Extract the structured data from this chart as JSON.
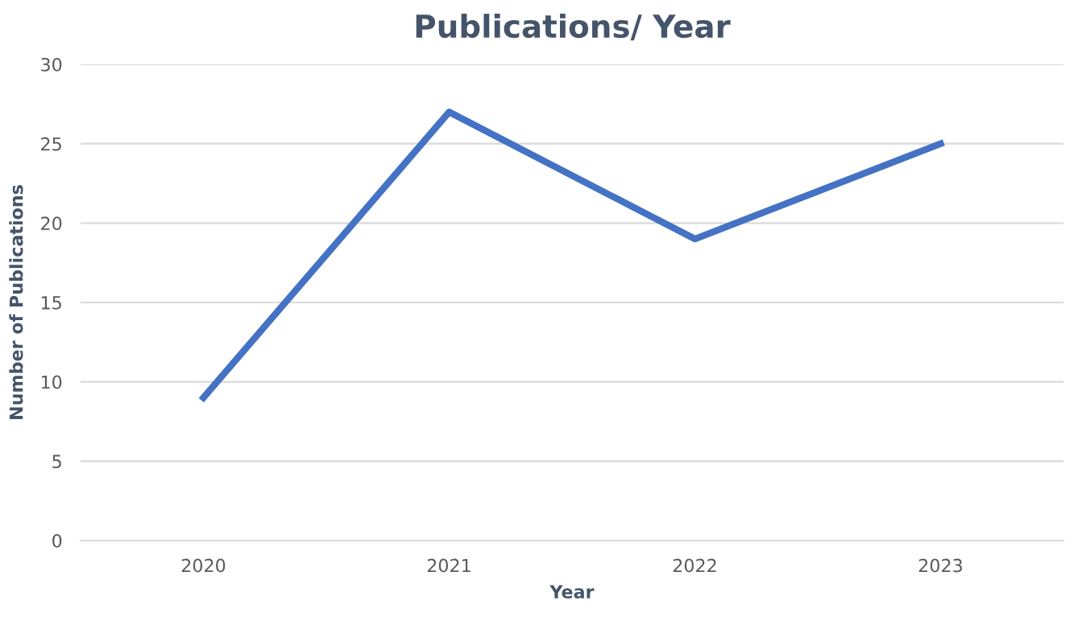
{
  "chart_data": {
    "type": "line",
    "title": "Publications/ Year",
    "xlabel": "Year",
    "ylabel": "Number of Publications",
    "categories": [
      "2020",
      "2021",
      "2022",
      "2023"
    ],
    "series": [
      {
        "color": "#4472c4",
        "values": [
          9,
          27,
          19,
          25
        ]
      }
    ],
    "ylim": [
      0,
      30
    ],
    "yticks": [
      0,
      5,
      10,
      15,
      20,
      25,
      30
    ],
    "grid": "y",
    "legend": false,
    "marker": "none",
    "line_style": "solid"
  }
}
